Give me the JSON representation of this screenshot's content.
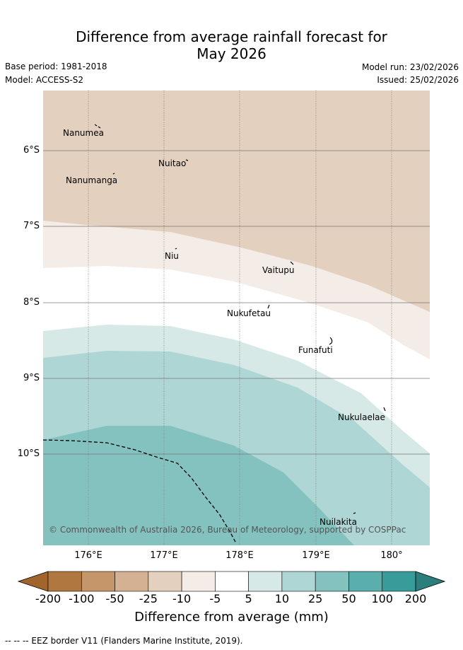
{
  "title_line1": "Difference from average rainfall forecast for",
  "title_line2": "May 2026",
  "base_period": "Base period: 1981-2018",
  "model": "Model: ACCESS-S2",
  "model_run": "Model run: 23/02/2026",
  "issued": "Issued: 25/02/2026",
  "lat_labels": [
    "6°S",
    "7°S",
    "8°S",
    "9°S",
    "10°S"
  ],
  "lon_labels": [
    "176°E",
    "177°E",
    "178°E",
    "179°E",
    "180°"
  ],
  "places": [
    "Nanumea",
    "Nuitao",
    "Nanumanga",
    "Niu",
    "Vaitupu",
    "Nukufetau",
    "Funafuti",
    "Nukulaelae",
    "Nuilakita"
  ],
  "credit": "© Commonwealth of Australia 2026, Bureau of Meteorology, supported by COSPPac",
  "legend": {
    "title": "Difference from average (mm)",
    "ticks": [
      "-200",
      "-100",
      "-50",
      "-25",
      "-10",
      "-5",
      "5",
      "10",
      "25",
      "50",
      "100",
      "200"
    ],
    "colors": [
      "#b07840",
      "#c4966a",
      "#d4b192",
      "#e4d0be",
      "#f4ece7",
      "#ffffff",
      "#d6e9e7",
      "#aed6d5",
      "#84c2c0",
      "#5aaeac",
      "#379c9a"
    ],
    "extend_low_color": "#a0642c",
    "extend_high_color": "#2a7f7c"
  },
  "map_colors": {
    "dry_10_25": "#e4d0be",
    "dry_5_10": "#f4ece7",
    "neutral": "#ffffff",
    "wet_5_10": "#d6e9e7",
    "wet_10_25": "#aed6d5",
    "wet_25_50": "#84c2c0"
  },
  "footnote": "-- -- -- EEZ border V11 (Flanders Marine Institute, 2019)."
}
